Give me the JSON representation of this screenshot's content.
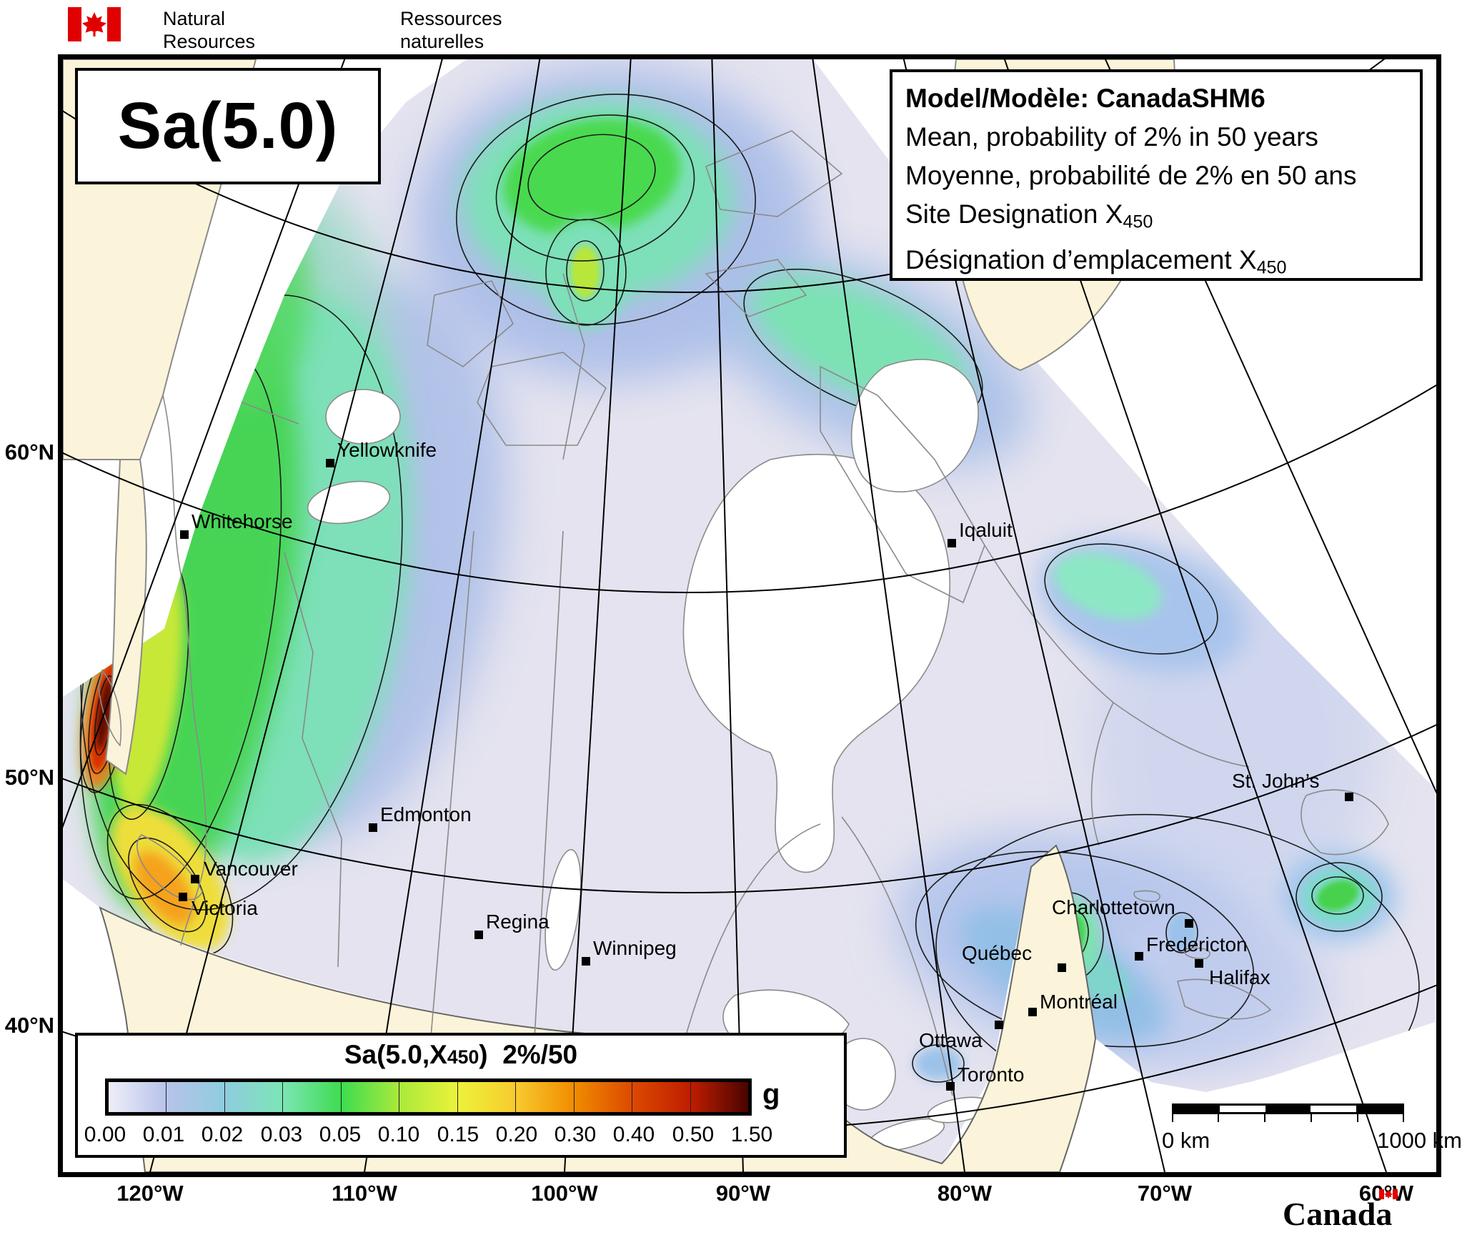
{
  "header": {
    "name_en_line1": "Natural Resources",
    "name_en_line2": "Canada",
    "name_fr_line1": "Ressources naturelles",
    "name_fr_line2": "Canada"
  },
  "map_title": "Sa(5.0)",
  "info_box": {
    "model_line": "Model/Modèle: CanadaSHM6",
    "mean_en": "Mean, probability of 2% in 50 years",
    "mean_fr": "Moyenne, probabilité de 2% en 50 ans",
    "site_en_prefix": "Site Designation X",
    "site_fr_prefix": "Désignation d’emplacement X",
    "site_sub": "450"
  },
  "cities": [
    {
      "name": "Whitehorse"
    },
    {
      "name": "Yellowknife"
    },
    {
      "name": "Iqaluit"
    },
    {
      "name": "Edmonton"
    },
    {
      "name": "Vancouver"
    },
    {
      "name": "Victoria"
    },
    {
      "name": "Regina"
    },
    {
      "name": "Winnipeg"
    },
    {
      "name": "Québec"
    },
    {
      "name": "Montréal"
    },
    {
      "name": "Ottawa"
    },
    {
      "name": "Toronto"
    },
    {
      "name": "Charlottetown"
    },
    {
      "name": "Fredericton"
    },
    {
      "name": "Halifax"
    },
    {
      "name": "St. John’s"
    }
  ],
  "axis": {
    "lat": [
      "60°N",
      "50°N",
      "40°N"
    ],
    "lon": [
      "120°W",
      "110°W",
      "100°W",
      "90°W",
      "80°W",
      "70°W",
      "60°W"
    ]
  },
  "legend": {
    "title_prefix": "Sa(5.0,X",
    "title_sub": "450",
    "title_suffix": ")",
    "title_prob": "2%/50",
    "unit": "g",
    "ticks": [
      "0.00",
      "0.01",
      "0.02",
      "0.03",
      "0.05",
      "0.10",
      "0.15",
      "0.20",
      "0.30",
      "0.40",
      "0.50",
      "1.50"
    ],
    "stops": [
      "#efeef8",
      "#b7c3ea",
      "#8fccdf",
      "#7ce5b5",
      "#3edc50",
      "#a9e93b",
      "#ecf23a",
      "#f8cb2e",
      "#f08c00",
      "#dc4a00",
      "#bf1d00",
      "#4a0400"
    ]
  },
  "scale_bar": {
    "start": "0 km",
    "end": "1000 km"
  },
  "wordmark": "Canada",
  "colors": {
    "flag_red": "#e00000",
    "land_cream": "#fbf4da",
    "canada_base": "#e4e3ef",
    "ocean_white": "#ffffff",
    "coast_gray": "#8a8a8a",
    "contour_black": "#1a1a1a"
  }
}
